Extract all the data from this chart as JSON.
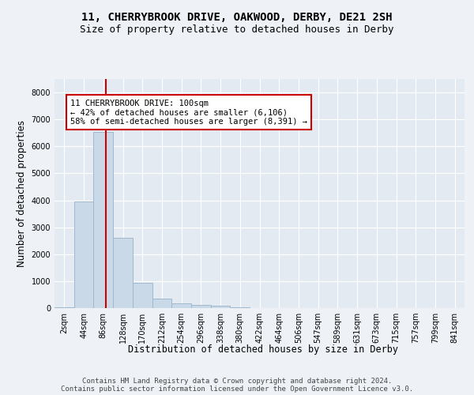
{
  "title_line1": "11, CHERRYBROOK DRIVE, OAKWOOD, DERBY, DE21 2SH",
  "title_line2": "Size of property relative to detached houses in Derby",
  "xlabel": "Distribution of detached houses by size in Derby",
  "ylabel": "Number of detached properties",
  "categories": [
    "2sqm",
    "44sqm",
    "86sqm",
    "128sqm",
    "170sqm",
    "212sqm",
    "254sqm",
    "296sqm",
    "338sqm",
    "380sqm",
    "422sqm",
    "464sqm",
    "506sqm",
    "547sqm",
    "589sqm",
    "631sqm",
    "673sqm",
    "715sqm",
    "757sqm",
    "799sqm",
    "841sqm"
  ],
  "values": [
    30,
    3950,
    6550,
    2600,
    950,
    350,
    170,
    130,
    80,
    30,
    0,
    0,
    0,
    0,
    0,
    0,
    0,
    0,
    0,
    0,
    0
  ],
  "bar_color": "#c9d9e8",
  "bar_edgecolor": "#a0b8cc",
  "vline_color": "#cc0000",
  "vline_x_index": 2.15,
  "annotation_text": "11 CHERRYBROOK DRIVE: 100sqm\n← 42% of detached houses are smaller (6,106)\n58% of semi-detached houses are larger (8,391) →",
  "annotation_box_color": "white",
  "annotation_box_edgecolor": "#cc0000",
  "ylim": [
    0,
    8500
  ],
  "yticks": [
    0,
    1000,
    2000,
    3000,
    4000,
    5000,
    6000,
    7000,
    8000
  ],
  "footer_text": "Contains HM Land Registry data © Crown copyright and database right 2024.\nContains public sector information licensed under the Open Government Licence v3.0.",
  "background_color": "#eef2f7",
  "plot_background_color": "#e4eaf2",
  "grid_color": "white",
  "title_fontsize": 10,
  "subtitle_fontsize": 9,
  "axis_label_fontsize": 8.5,
  "tick_fontsize": 7,
  "footer_fontsize": 6.5,
  "annotation_fontsize": 7.5
}
